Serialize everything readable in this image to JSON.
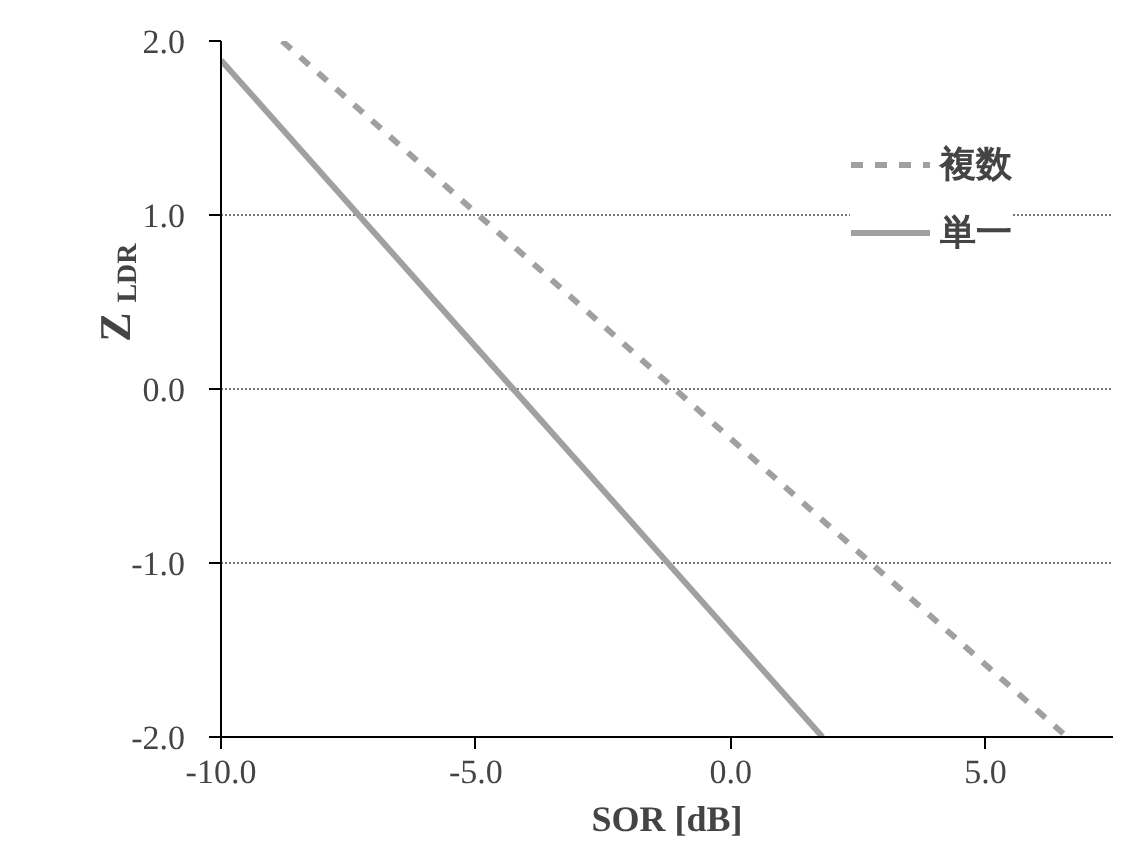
{
  "chart_data": {
    "type": "line",
    "xlabel": "SOR [dB]",
    "ylabel": "Z$_{LDR}$",
    "xlim": [
      -10,
      7.5
    ],
    "ylim": [
      -2.0,
      2.0
    ],
    "xticks": [
      {
        "value": -10,
        "label": "-10.0"
      },
      {
        "value": -5,
        "label": "-5.0"
      },
      {
        "value": 0,
        "label": "0.0"
      },
      {
        "value": 5,
        "label": "5.0"
      }
    ],
    "yticks": [
      {
        "value": -2,
        "label": "-2.0"
      },
      {
        "value": -1,
        "label": "-1.0"
      },
      {
        "value": 0,
        "label": "0.0"
      },
      {
        "value": 1,
        "label": "1.0"
      },
      {
        "value": 2,
        "label": "2.0"
      }
    ],
    "grid": "y",
    "legend": "top right",
    "marker": "none",
    "series": [
      {
        "name": "複数",
        "color": "#a0a0a0",
        "line_style": "dashed",
        "x": [
          -8.8,
          6.6
        ],
        "values": [
          2.0,
          -2.0
        ]
      },
      {
        "name": "単一",
        "color": "#a0a0a0",
        "line_style": "solid",
        "x": [
          -10.0,
          1.8
        ],
        "values": [
          1.89,
          -2.0
        ]
      }
    ]
  }
}
